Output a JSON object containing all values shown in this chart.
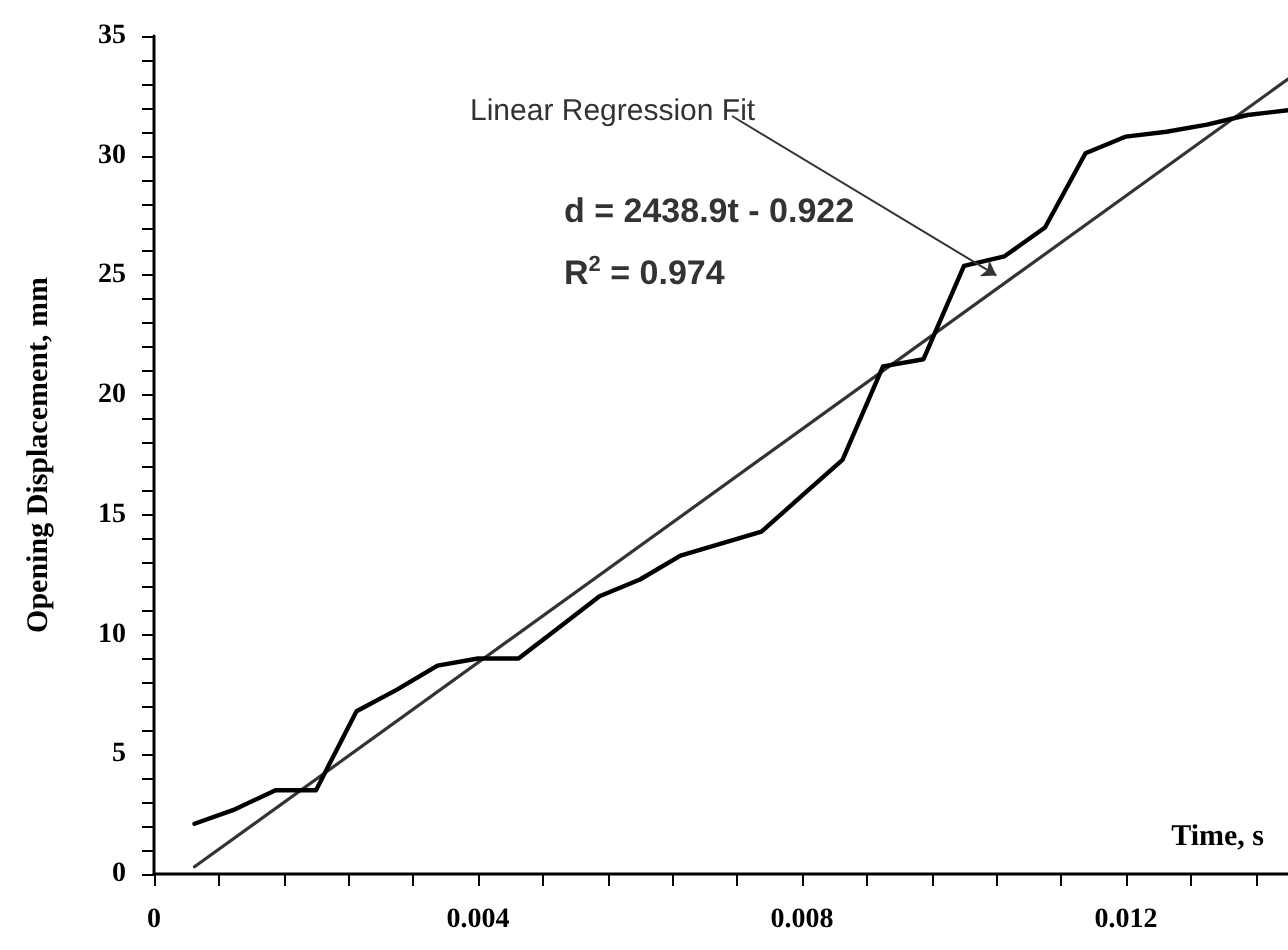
{
  "chart_data": {
    "type": "line",
    "xlabel": "Time, s",
    "ylabel": "Opening Displacement, mm",
    "xlim": [
      0,
      0.014
    ],
    "ylim": [
      0,
      35
    ],
    "xticks": [
      0,
      {
        "value": 0.0008,
        "label": null
      },
      {
        "value": 0.0016,
        "label": null
      },
      {
        "value": 0.0024,
        "label": null
      },
      {
        "value": 0.0032,
        "label": null
      },
      0.004,
      {
        "value": 0.0048,
        "label": null
      },
      {
        "value": 0.0056,
        "label": null
      },
      {
        "value": 0.0064,
        "label": null
      },
      {
        "value": 0.0072,
        "label": null
      },
      0.008,
      {
        "value": 0.0088,
        "label": null
      },
      {
        "value": 0.0096,
        "label": null
      },
      {
        "value": 0.0104,
        "label": null
      },
      {
        "value": 0.0112,
        "label": null
      },
      0.012,
      {
        "value": 0.0128,
        "label": null
      },
      {
        "value": 0.0136,
        "label": null
      }
    ],
    "yticks": [
      0,
      {
        "value": 1,
        "label": null
      },
      {
        "value": 2,
        "label": null
      },
      {
        "value": 3,
        "label": null
      },
      {
        "value": 4,
        "label": null
      },
      5,
      {
        "value": 6,
        "label": null
      },
      {
        "value": 7,
        "label": null
      },
      {
        "value": 8,
        "label": null
      },
      {
        "value": 9,
        "label": null
      },
      10,
      {
        "value": 11,
        "label": null
      },
      {
        "value": 12,
        "label": null
      },
      {
        "value": 13,
        "label": null
      },
      {
        "value": 14,
        "label": null
      },
      15,
      {
        "value": 16,
        "label": null
      },
      {
        "value": 17,
        "label": null
      },
      {
        "value": 18,
        "label": null
      },
      {
        "value": 19,
        "label": null
      },
      20,
      {
        "value": 21,
        "label": null
      },
      {
        "value": 22,
        "label": null
      },
      {
        "value": 23,
        "label": null
      },
      {
        "value": 24,
        "label": null
      },
      25,
      {
        "value": 26,
        "label": null
      },
      {
        "value": 27,
        "label": null
      },
      {
        "value": 28,
        "label": null
      },
      {
        "value": 29,
        "label": null
      },
      30,
      {
        "value": 31,
        "label": null
      },
      {
        "value": 32,
        "label": null
      },
      {
        "value": 33,
        "label": null
      },
      {
        "value": 34,
        "label": null
      },
      35
    ],
    "grid": false,
    "marker": "none",
    "line_style": "solid",
    "series": [
      {
        "color": "#000000",
        "x": [
          0.0005,
          0.001,
          0.0015,
          0.002,
          0.0025,
          0.003,
          0.0035,
          0.004,
          0.0045,
          0.005,
          0.0055,
          0.006,
          0.0065,
          0.007,
          0.0075,
          0.008,
          0.0085,
          0.009,
          0.0095,
          0.01,
          0.0105,
          0.011,
          0.0115,
          0.012,
          0.0125,
          0.013,
          0.0135,
          0.014
        ],
        "values": [
          2.1,
          2.7,
          3.5,
          3.5,
          6.8,
          7.7,
          8.7,
          9.0,
          9.0,
          10.3,
          11.6,
          12.3,
          13.3,
          13.8,
          14.3,
          15.8,
          17.3,
          21.2,
          21.5,
          25.4,
          25.8,
          27.0,
          30.1,
          30.8,
          31.0,
          31.3,
          31.7,
          31.9
        ]
      },
      {
        "type": "line",
        "color": "#333333",
        "x": [
          0.0005,
          0.014
        ],
        "values": [
          0.3,
          33.2
        ]
      }
    ],
    "annotations": [
      {
        "text": "Linear Regression Fit",
        "x": 0.0104,
        "y": 25.0
      },
      "d = 2438.9t - 0.922",
      "R$^{2}$ = 0.974"
    ]
  }
}
